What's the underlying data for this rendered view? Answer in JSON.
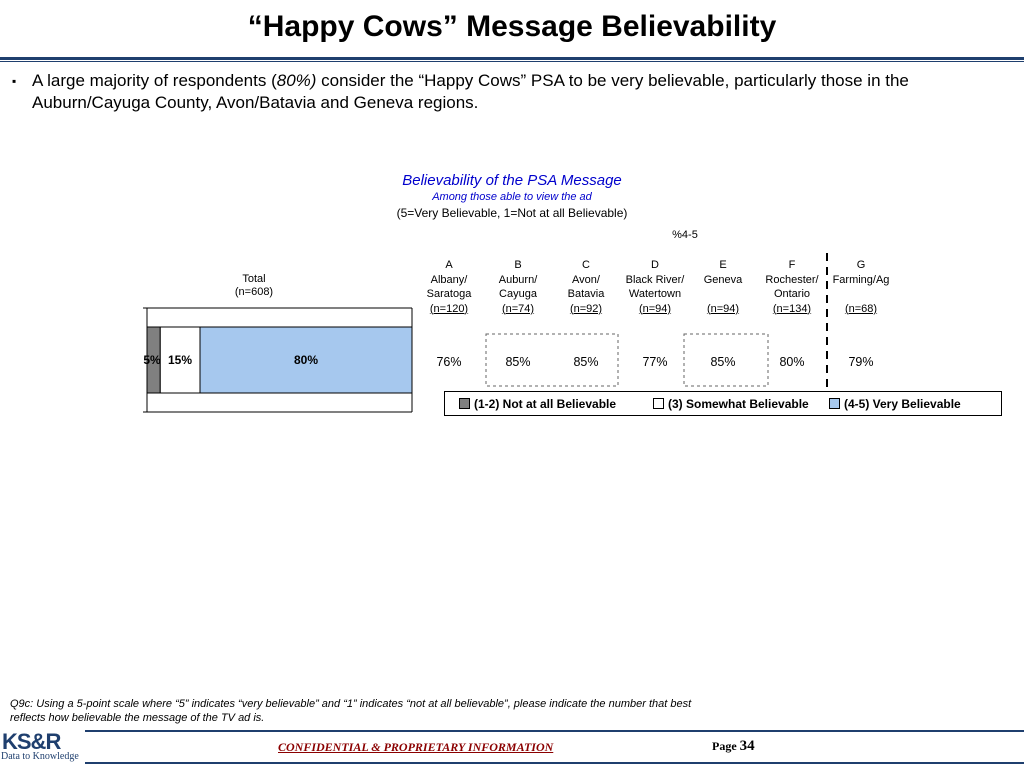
{
  "title": "“Happy Cows” Message Believability",
  "bullet": {
    "marker": "▪",
    "text_before": "A large majority of respondents (",
    "text_emph": "80%)",
    "text_after": " consider the “Happy Cows” PSA to be very believable, particularly those in the Auburn/Cayuga County, Avon/Batavia and Geneva regions."
  },
  "chart_data": {
    "type": "bar",
    "orientation": "horizontal-stacked",
    "title": "Believability of the PSA Message",
    "subtitle": "Among those able to view the ad",
    "scale_note": "(5=Very Believable, 1=Not at all Believable)",
    "total_label": "Total",
    "total_n": "(n=608)",
    "categories": [
      "Total"
    ],
    "xlim": [
      0,
      100
    ],
    "series": [
      {
        "name": "(1-2) Not at all Believable",
        "values": [
          5
        ],
        "label": "5%",
        "color": "#808080"
      },
      {
        "name": "(3) Somewhat Believable",
        "values": [
          15
        ],
        "label": "15%",
        "color": "#ffffff"
      },
      {
        "name": "(4-5) Very Believable",
        "values": [
          80
        ],
        "label": "80%",
        "color": "#a6c8ee"
      }
    ],
    "region_header": "%4-5",
    "regions": [
      {
        "letter": "A",
        "line1": "Albany/",
        "line2": "Saratoga",
        "n": "(n=120)",
        "value": "76%",
        "highlight": false
      },
      {
        "letter": "B",
        "line1": "Auburn/",
        "line2": "Cayuga",
        "n": "(n=74)",
        "value": "85%",
        "highlight": true
      },
      {
        "letter": "C",
        "line1": "Avon/",
        "line2": "Batavia",
        "n": "(n=92)",
        "value": "85%",
        "highlight": true
      },
      {
        "letter": "D",
        "line1": "Black River/",
        "line2": "Watertown",
        "n": "(n=94)",
        "value": "77%",
        "highlight": false
      },
      {
        "letter": "E",
        "line1": "Geneva",
        "line2": "",
        "n": "(n=94)",
        "value": "85%",
        "highlight": true
      },
      {
        "letter": "F",
        "line1": "Rochester/",
        "line2": "Ontario",
        "n": "(n=134)",
        "value": "80%",
        "highlight": false
      },
      {
        "letter": "G",
        "line1": "Farming/Ag",
        "line2": "",
        "n": "(n=68)",
        "value": "79%",
        "highlight": false
      }
    ],
    "legend_placement": "bottom-right"
  },
  "footnote": "Q9c:  Using a 5-point scale where “5” indicates “very believable” and “1” indicates “not at all believable”, please indicate the number that best reflects how believable the message of the TV ad is.",
  "footer": {
    "logo_main": "KS&R",
    "logo_sub": "Data to Knowledge",
    "confidential": "CONFIDENTIAL & PROPRIETARY INFORMATION",
    "page_label": "Page",
    "page_number": "34"
  }
}
